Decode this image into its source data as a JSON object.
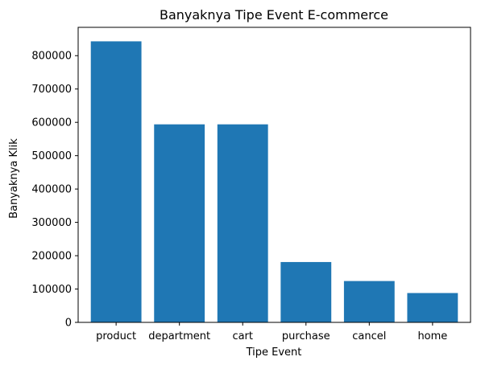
{
  "chart_data": {
    "type": "bar",
    "title": "Banyaknya Tipe Event E-commerce",
    "xlabel": "Tipe Event",
    "ylabel": "Banyaknya Klik",
    "categories": [
      "product",
      "department",
      "cart",
      "purchase",
      "cancel",
      "home"
    ],
    "values": [
      843000,
      594000,
      594000,
      181000,
      124000,
      88000
    ],
    "ylim": [
      0,
      885000
    ],
    "yticks": [
      0,
      100000,
      200000,
      300000,
      400000,
      500000,
      600000,
      700000,
      800000
    ],
    "ytick_labels": [
      "0",
      "100000",
      "200000",
      "300000",
      "400000",
      "500000",
      "600000",
      "700000",
      "800000"
    ],
    "grid": false,
    "bar_color": "#1f77b4"
  }
}
